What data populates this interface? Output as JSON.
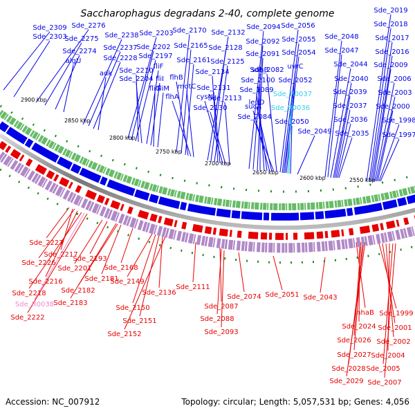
{
  "title": "Saccharophagus degradans 2-40, complete genome",
  "footer": {
    "accession": "Accession: NC_007912",
    "summary": "Topology: circular; Length: 5,057,531 bp; Genes: 4,056"
  },
  "colors": {
    "forward": "#0000e6",
    "reverse": "#e60000",
    "rna_forward": "#33ccee",
    "rna_reverse": "#ee88cc",
    "backbone": "#888888",
    "gc_dot": "#1a8a1a"
  },
  "ruler": [
    "2900 kbp",
    "2850 kbp",
    "2800 kbp",
    "2750 kbp",
    "2700 kbp",
    "2650 kbp",
    "2600 kbp",
    "2550 kbp"
  ],
  "forward_labels": [
    {
      "text": "Sde_2309",
      "kind": "cds"
    },
    {
      "text": "Sde_2303",
      "kind": "cds"
    },
    {
      "text": "Sde_2276",
      "kind": "cds"
    },
    {
      "text": "Sde_2275",
      "kind": "cds"
    },
    {
      "text": "Sde_2274",
      "kind": "cds"
    },
    {
      "text": "algU",
      "kind": "cds"
    },
    {
      "text": "Sde_2238",
      "kind": "cds"
    },
    {
      "text": "Sde_2237",
      "kind": "cds"
    },
    {
      "text": "Sde_2228",
      "kind": "cds"
    },
    {
      "text": "adk",
      "kind": "cds"
    },
    {
      "text": "Sde_2203",
      "kind": "cds"
    },
    {
      "text": "Sde_2202",
      "kind": "cds"
    },
    {
      "text": "Sde_2197",
      "kind": "cds"
    },
    {
      "text": "Sde_2210",
      "kind": "cds"
    },
    {
      "text": "Sde_2204",
      "kind": "cds"
    },
    {
      "text": "fliF",
      "kind": "cds"
    },
    {
      "text": "fliI",
      "kind": "cds"
    },
    {
      "text": "fliG",
      "kind": "cds"
    },
    {
      "text": "fliM",
      "kind": "cds"
    },
    {
      "text": "Sde_2170",
      "kind": "cds"
    },
    {
      "text": "Sde_2165",
      "kind": "cds"
    },
    {
      "text": "Sde_2161",
      "kind": "cds"
    },
    {
      "text": "flhB",
      "kind": "cds"
    },
    {
      "text": "flhA",
      "kind": "cds"
    },
    {
      "text": "motC",
      "kind": "cds"
    },
    {
      "text": "Sde_2132",
      "kind": "cds"
    },
    {
      "text": "Sde_2128",
      "kind": "cds"
    },
    {
      "text": "Sde_2125",
      "kind": "cds"
    },
    {
      "text": "Sde_2134",
      "kind": "cds"
    },
    {
      "text": "Sde_2131",
      "kind": "cds"
    },
    {
      "text": "cysN",
      "kind": "cds"
    },
    {
      "text": "Sde_2130",
      "kind": "cds"
    },
    {
      "text": "Sde_2113",
      "kind": "cds"
    },
    {
      "text": "Sde_2094",
      "kind": "cds"
    },
    {
      "text": "Sde_2092",
      "kind": "cds"
    },
    {
      "text": "Sde_2091",
      "kind": "cds"
    },
    {
      "text": "sdhB",
      "kind": "cds"
    },
    {
      "text": "Sde_2100",
      "kind": "cds"
    },
    {
      "text": "Sde_2089",
      "kind": "cds"
    },
    {
      "text": "sucA",
      "kind": "cds"
    },
    {
      "text": "leuD",
      "kind": "cds"
    },
    {
      "text": "Sde_2084",
      "kind": "cds"
    },
    {
      "text": "Sde_2082",
      "kind": "cds"
    },
    {
      "text": "Sde_2056",
      "kind": "cds"
    },
    {
      "text": "Sde_2055",
      "kind": "cds"
    },
    {
      "text": "Sde_2054",
      "kind": "cds"
    },
    {
      "text": "uvrC",
      "kind": "cds"
    },
    {
      "text": "Sde_2052",
      "kind": "cds"
    },
    {
      "text": "Sde_R0037",
      "kind": "rna"
    },
    {
      "text": "Sde_R0036",
      "kind": "rna"
    },
    {
      "text": "Sde_2050",
      "kind": "cds"
    },
    {
      "text": "Sde_2049",
      "kind": "cds"
    },
    {
      "text": "Sde_2048",
      "kind": "cds"
    },
    {
      "text": "Sde_2047",
      "kind": "cds"
    },
    {
      "text": "Sde_2044",
      "kind": "cds"
    },
    {
      "text": "Sde_2040",
      "kind": "cds"
    },
    {
      "text": "Sde_2039",
      "kind": "cds"
    },
    {
      "text": "Sde_2037",
      "kind": "cds"
    },
    {
      "text": "Sde_2036",
      "kind": "cds"
    },
    {
      "text": "Sde_2035",
      "kind": "cds"
    },
    {
      "text": "Sde_2019",
      "kind": "cds"
    },
    {
      "text": "Sde_2018",
      "kind": "cds"
    },
    {
      "text": "Sde_2017",
      "kind": "cds"
    },
    {
      "text": "Sde_2016",
      "kind": "cds"
    },
    {
      "text": "Sde_2009",
      "kind": "cds"
    },
    {
      "text": "Sde_2006",
      "kind": "cds"
    },
    {
      "text": "Sde_2003",
      "kind": "cds"
    },
    {
      "text": "Sde_2000",
      "kind": "cds"
    },
    {
      "text": "Sde_1998",
      "kind": "cds"
    },
    {
      "text": "Sde_1997",
      "kind": "cds"
    }
  ],
  "reverse_labels": [
    {
      "text": "Sde_2227",
      "kind": "cds"
    },
    {
      "text": "Sde_2217",
      "kind": "cds"
    },
    {
      "text": "Sde_2226",
      "kind": "cds"
    },
    {
      "text": "Sde_2201",
      "kind": "cds"
    },
    {
      "text": "Sde_2193",
      "kind": "cds"
    },
    {
      "text": "Sde_2216",
      "kind": "cds"
    },
    {
      "text": "Sde_2181",
      "kind": "cds"
    },
    {
      "text": "Sde_2168",
      "kind": "cds"
    },
    {
      "text": "Sde_2218",
      "kind": "cds"
    },
    {
      "text": "Sde_2182",
      "kind": "cds"
    },
    {
      "text": "Sde_2149",
      "kind": "cds"
    },
    {
      "text": "Sde_2136",
      "kind": "cds"
    },
    {
      "text": "Sde_2111",
      "kind": "cds"
    },
    {
      "text": "Sde_2183",
      "kind": "cds"
    },
    {
      "text": "Sde_R0038",
      "kind": "rna"
    },
    {
      "text": "Sde_2150",
      "kind": "cds"
    },
    {
      "text": "Sde_2222",
      "kind": "cds"
    },
    {
      "text": "Sde_2151",
      "kind": "cds"
    },
    {
      "text": "Sde_2152",
      "kind": "cds"
    },
    {
      "text": "Sde_2087",
      "kind": "cds"
    },
    {
      "text": "Sde_2074",
      "kind": "cds"
    },
    {
      "text": "Sde_2051",
      "kind": "cds"
    },
    {
      "text": "Sde_2043",
      "kind": "cds"
    },
    {
      "text": "Sde_2088",
      "kind": "cds"
    },
    {
      "text": "Sde_2093",
      "kind": "cds"
    },
    {
      "text": "nhaB",
      "kind": "cds"
    },
    {
      "text": "Sde_1999",
      "kind": "cds"
    },
    {
      "text": "Sde_2024",
      "kind": "cds"
    },
    {
      "text": "Sde_2001",
      "kind": "cds"
    },
    {
      "text": "Sde_2026",
      "kind": "cds"
    },
    {
      "text": "Sde_2002",
      "kind": "cds"
    },
    {
      "text": "Sde_2027",
      "kind": "cds"
    },
    {
      "text": "Sde_2004",
      "kind": "cds"
    },
    {
      "text": "Sde_2028",
      "kind": "cds"
    },
    {
      "text": "Sde_2005",
      "kind": "cds"
    },
    {
      "text": "Sde_2029",
      "kind": "cds"
    },
    {
      "text": "Sde_2007",
      "kind": "cds"
    }
  ]
}
